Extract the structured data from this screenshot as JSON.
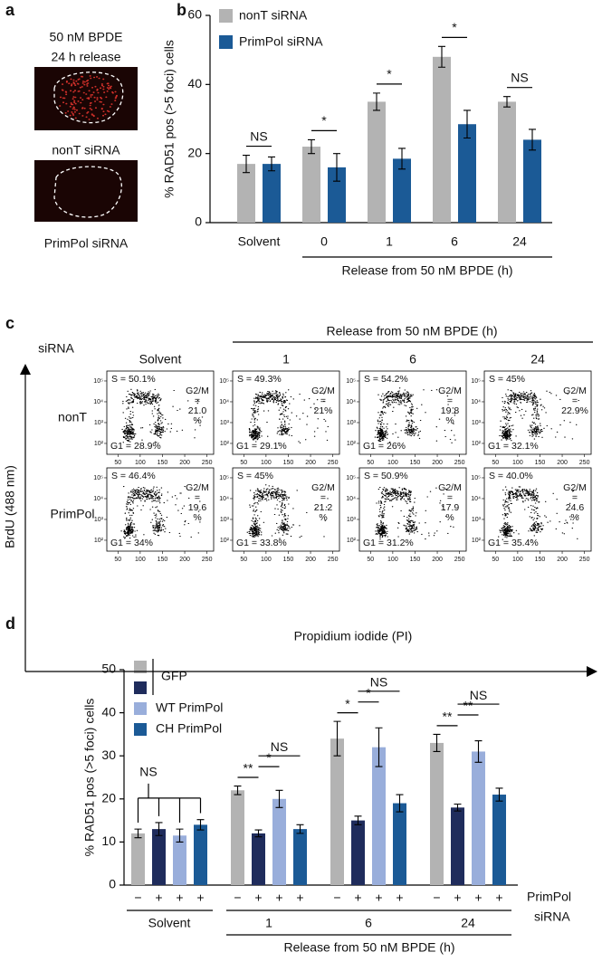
{
  "panel_labels": {
    "a": "a",
    "b": "b",
    "c": "c",
    "d": "d"
  },
  "panel_a": {
    "treatment": [
      "50 nM BPDE",
      "24 h release"
    ],
    "image_labels": [
      "nonT siRNA",
      "PrimPol siRNA"
    ]
  },
  "chart_data": [
    {
      "type": "bar",
      "y_label": "% RAD51 pos (>5 foci) cells",
      "x_label": "Release from 50 nM BPDE (h)",
      "categories": [
        "Solvent",
        "0",
        "1",
        "6",
        "24"
      ],
      "series": [
        {
          "name": "nonT siRNA",
          "color": "#b3b3b3",
          "values": [
            17,
            22,
            35,
            48,
            35
          ],
          "errors": [
            2.5,
            2,
            2.5,
            3,
            1.5
          ]
        },
        {
          "name": "PrimPol siRNA",
          "color": "#1b5a96",
          "values": [
            17,
            16,
            18.5,
            28.5,
            24
          ],
          "errors": [
            2,
            4,
            3,
            4,
            3
          ]
        }
      ],
      "ylim": [
        0,
        60
      ],
      "yticks": [
        0,
        20,
        40,
        60
      ],
      "significance": [
        "NS",
        "*",
        "*",
        "*",
        "NS"
      ]
    },
    {
      "type": "bar",
      "y_label": "% RAD51 pos (>5 foci) cells",
      "x_label": "Release from 50 nM BPDE (h)",
      "categories": [
        "Solvent",
        "1",
        "6",
        "24"
      ],
      "series": [
        {
          "name": "GFP",
          "color": "#b3b3b3",
          "values": [
            12,
            22,
            34,
            33
          ],
          "errors": [
            1,
            1,
            4,
            2
          ]
        },
        {
          "color": "#1f2c5c",
          "values": [
            13,
            12,
            15,
            18
          ],
          "errors": [
            1.5,
            0.8,
            1,
            0.8
          ]
        },
        {
          "name": "WT PrimPol",
          "color": "#99aedb",
          "values": [
            11.5,
            20,
            32,
            31
          ],
          "errors": [
            1.5,
            2,
            4.5,
            2.5
          ]
        },
        {
          "name": "CH PrimPol",
          "color": "#1b5a96",
          "values": [
            14,
            13,
            19,
            21
          ],
          "errors": [
            1.2,
            1,
            2,
            1.5
          ]
        }
      ],
      "ylim": [
        0,
        50
      ],
      "yticks": [
        0,
        10,
        20,
        30,
        40,
        50
      ],
      "x_sublabels": [
        "−",
        "+",
        "+",
        "+"
      ],
      "sublabel_title": [
        "PrimPol",
        "siRNA"
      ],
      "significance": [
        {
          "text": "NS",
          "group": 0,
          "series": [
            0,
            1,
            2,
            3
          ]
        },
        {
          "text": "**",
          "group": 1,
          "series": [
            0,
            1
          ]
        },
        {
          "text": "*",
          "group": 1,
          "series": [
            1,
            2
          ]
        },
        {
          "text": "NS",
          "group": 1,
          "series": [
            1,
            3
          ]
        },
        {
          "text": "*",
          "group": 2,
          "series": [
            0,
            1
          ]
        },
        {
          "text": "*",
          "group": 2,
          "series": [
            1,
            2
          ]
        },
        {
          "text": "NS",
          "group": 2,
          "series": [
            1,
            3
          ]
        },
        {
          "text": "**",
          "group": 3,
          "series": [
            0,
            1
          ]
        },
        {
          "text": "**",
          "group": 3,
          "series": [
            1,
            2
          ]
        },
        {
          "text": "NS",
          "group": 3,
          "series": [
            1,
            3
          ]
        }
      ]
    }
  ],
  "panel_c": {
    "column_title": "Release from 50 nM BPDE (h)",
    "row_title": "siRNA",
    "columns": [
      "Solvent",
      "1",
      "6",
      "24"
    ],
    "rows": [
      "nonT",
      "PrimPol"
    ],
    "y_label": "BrdU (488 nm)",
    "x_label": "Propidium iodide (PI)",
    "xlim": [
      25,
      265
    ],
    "xticks": [
      50,
      100,
      150,
      200,
      250
    ],
    "ylim": [
      30,
      300000
    ],
    "ylog": true,
    "yticks": [
      {
        "value": 100,
        "label": "10²"
      },
      {
        "value": 1000,
        "label": "10³"
      },
      {
        "value": 10000,
        "label": "10⁴"
      },
      {
        "value": 100000,
        "label": "10⁵"
      }
    ],
    "plots": [
      [
        {
          "s": "S = 50.1%",
          "g2m": [
            "G2/M",
            "=",
            "21.0",
            "%"
          ],
          "g1": "G1 = 28.9%"
        },
        {
          "s": "S = 49.3%",
          "g2m": [
            "G2/M",
            "=",
            "21%"
          ],
          "g1": "G1 = 29.1%"
        },
        {
          "s": "S = 54.2%",
          "g2m": [
            "G2/M",
            "=",
            "19.8",
            "%"
          ],
          "g1": "G1 = 26%"
        },
        {
          "s": "S = 45%",
          "g2m": [
            "G2/M",
            "=",
            "22.9%"
          ],
          "g1": "G1 = 32.1%"
        }
      ],
      [
        {
          "s": "S = 46.4%",
          "g2m": [
            "G2/M",
            "=",
            "19.6",
            "%"
          ],
          "g1": "G1 = 34%"
        },
        {
          "s": "S = 45%",
          "g2m": [
            "G2/M",
            "=",
            "21.2",
            "%"
          ],
          "g1": "G1 = 33.8%"
        },
        {
          "s": "S = 50.9%",
          "g2m": [
            "G2/M",
            "=",
            "17.9",
            "%"
          ],
          "g1": "G1 = 31.2%"
        },
        {
          "s": "S = 40.0%",
          "g2m": [
            "G2/M",
            "=",
            "24.6",
            "%"
          ],
          "g1": "G1 = 35.4%"
        }
      ]
    ]
  }
}
